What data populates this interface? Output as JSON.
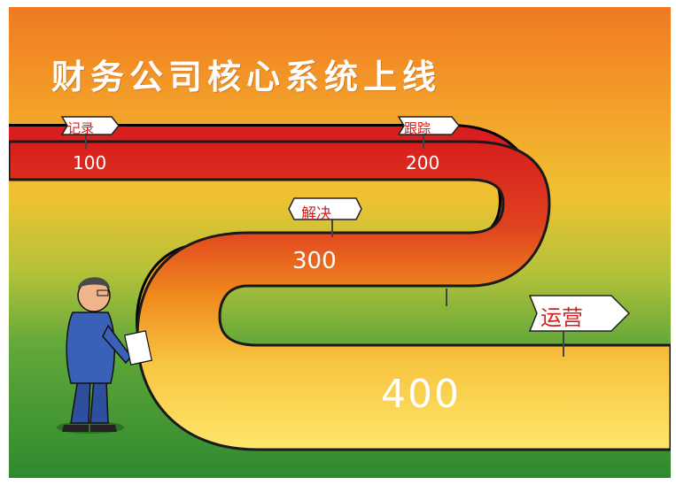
{
  "poster": {
    "title": "财务公司核心系统上线",
    "signs": {
      "record": "记录",
      "track": "跟踪",
      "solve": "解决",
      "operate": "运营"
    },
    "milestones": {
      "m100": "100",
      "m200": "200",
      "m300": "300",
      "m400": "400"
    }
  },
  "colors": {
    "road_red": "#d81e1e",
    "road_orange": "#f08a1e",
    "road_yellow": "#fde66a",
    "sky_orange": "#f07a22",
    "grass_green": "#2e8a2e",
    "sign_text": "#d62020"
  }
}
